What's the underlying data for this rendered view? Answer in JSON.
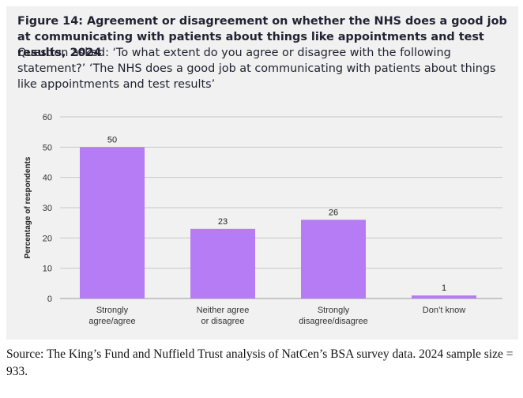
{
  "figure": {
    "title": "Figure 14: Agreement or disagreement on whether the NHS does a good job at communicating with patients about things like appointments and test results, 2024",
    "question": "Question asked: ‘To what extent do you agree or disagree with the following statement?’ ‘The NHS does a good job at communicating with patients about things like appointments and test results’"
  },
  "chart_data": {
    "type": "bar",
    "title": "Figure 14: Agreement or disagreement on whether the NHS does a good job at communicating with patients about things like appointments and test results, 2024",
    "categories": [
      [
        "Strongly",
        "agree/agree"
      ],
      [
        "Neither agree",
        "or disagree"
      ],
      [
        "Strongly",
        "disagree/disagree"
      ],
      [
        "Don’t know"
      ]
    ],
    "values": [
      50,
      23,
      26,
      1
    ],
    "data_labels": [
      "50",
      "23",
      "26",
      "1"
    ],
    "ylabel": "Percentage of respondents",
    "xlabel": "",
    "ylim": [
      0,
      60
    ],
    "yticks": [
      0,
      10,
      20,
      30,
      40,
      50,
      60
    ],
    "grid": true,
    "bar_color": "#b57cf5"
  },
  "source": "Source: The King’s Fund and Nuffield Trust analysis of NatCen’s BSA survey data. 2024 sample size = 933."
}
